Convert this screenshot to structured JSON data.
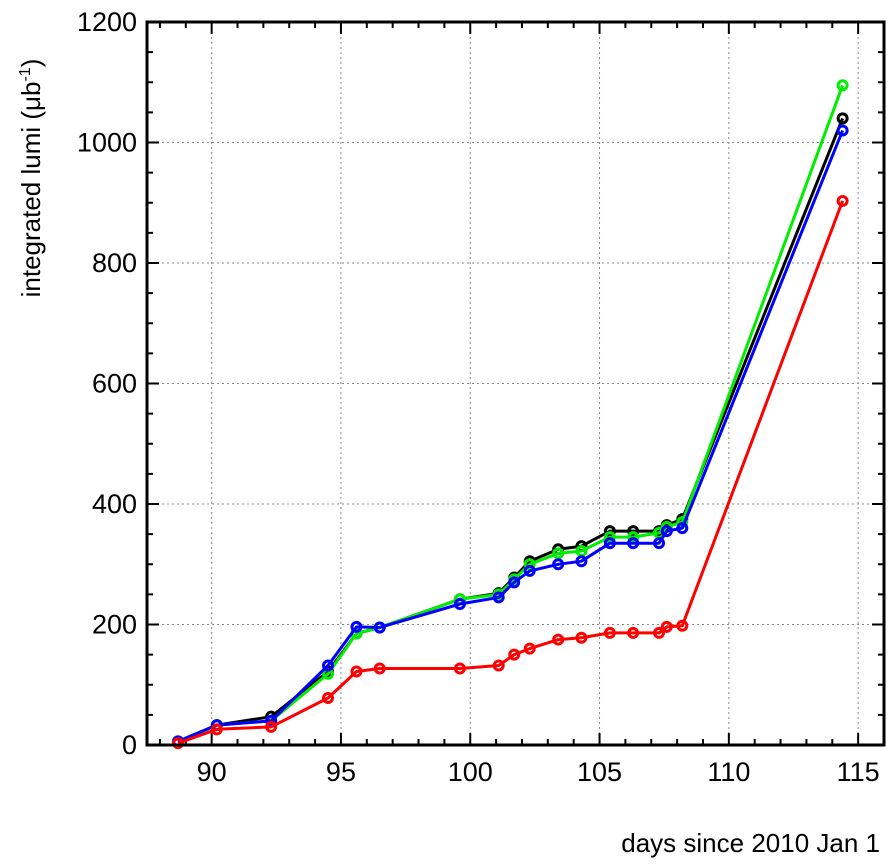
{
  "chart_data": {
    "type": "line",
    "xlabel": "days since 2010 Jan 1",
    "ylabel_main": "integrated lumi (μb",
    "ylabel_sup": "-1",
    "ylabel_end": ")",
    "xlim": [
      87.5,
      116
    ],
    "ylim": [
      0,
      1200
    ],
    "x_ticks": [
      90,
      95,
      100,
      105,
      110,
      115
    ],
    "y_ticks": [
      0,
      200,
      400,
      600,
      800,
      1000,
      1200
    ],
    "grid": true,
    "series": [
      {
        "color": "#000000",
        "x": [
          88.7,
          90.2,
          92.3,
          94.5,
          95.6,
          96.5,
          99.6,
          101.1,
          101.7,
          102.3,
          103.4,
          104.3,
          105.4,
          106.3,
          107.3,
          107.6,
          108.2,
          114.4
        ],
        "y": [
          6,
          33,
          47,
          122,
          185,
          195,
          242,
          252,
          278,
          305,
          325,
          330,
          355,
          355,
          355,
          365,
          375,
          1040
        ]
      },
      {
        "color": "#00ee00",
        "x": [
          88.7,
          90.2,
          92.3,
          94.5,
          95.6,
          96.5,
          99.6,
          101.1,
          101.7,
          102.3,
          103.4,
          104.3,
          105.4,
          106.3,
          107.3,
          107.6,
          108.2,
          114.4
        ],
        "y": [
          6,
          33,
          40,
          118,
          185,
          195,
          242,
          250,
          275,
          300,
          318,
          322,
          345,
          345,
          352,
          362,
          370,
          1095
        ]
      },
      {
        "color": "#0000ff",
        "x": [
          88.7,
          90.2,
          92.3,
          94.5,
          95.6,
          96.5,
          99.6,
          101.1,
          101.7,
          102.3,
          103.4,
          104.3,
          105.4,
          106.3,
          107.3,
          107.6,
          108.2,
          114.4
        ],
        "y": [
          6,
          33,
          40,
          132,
          196,
          195,
          234,
          245,
          270,
          289,
          300,
          305,
          335,
          335,
          335,
          355,
          360,
          1020
        ]
      },
      {
        "color": "#ff0000",
        "x": [
          88.7,
          90.2,
          92.3,
          94.5,
          95.6,
          96.5,
          99.6,
          101.1,
          101.7,
          102.3,
          103.4,
          104.3,
          105.4,
          106.3,
          107.3,
          107.6,
          108.2,
          114.4
        ],
        "y": [
          3,
          26,
          30,
          78,
          122,
          127,
          127,
          132,
          150,
          160,
          175,
          178,
          186,
          186,
          186,
          196,
          198,
          903
        ]
      }
    ]
  }
}
